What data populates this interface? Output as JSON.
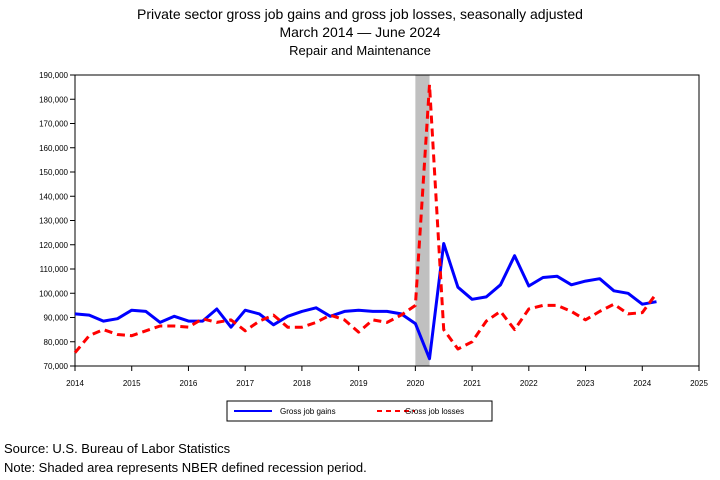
{
  "title": "Private sector gross job gains and gross job losses, seasonally adjusted",
  "date_range": {
    "start": "March 2014",
    "sep": "—",
    "end": "June 2024"
  },
  "subtitle": "Repair and Maintenance",
  "source": "Source: U.S. Bureau of Labor Statistics",
  "note": "Note: Shaded area represents NBER defined recession period.",
  "colors": {
    "gains": "#0000ff",
    "losses": "#ff0000",
    "recession": "#c0c0c0"
  },
  "chart_data": {
    "type": "line",
    "xlim": [
      2014,
      2025
    ],
    "ylim": [
      70000,
      190000
    ],
    "grid": false,
    "legend": "bottom",
    "x_ticks": [
      "2014",
      "2015",
      "2016",
      "2017",
      "2018",
      "2019",
      "2020",
      "2021",
      "2022",
      "2023",
      "2024",
      "2025"
    ],
    "y_ticks": [
      "70,000",
      "80,000",
      "90,000",
      "100,000",
      "110,000",
      "120,000",
      "130,000",
      "140,000",
      "150,000",
      "160,000",
      "170,000",
      "180,000",
      "190,000"
    ],
    "recession": {
      "start": 2020.0,
      "end": 2020.25
    },
    "x": [
      2014.0,
      2014.25,
      2014.5,
      2014.75,
      2015.0,
      2015.25,
      2015.5,
      2015.75,
      2016.0,
      2016.25,
      2016.5,
      2016.75,
      2017.0,
      2017.25,
      2017.5,
      2017.75,
      2018.0,
      2018.25,
      2018.5,
      2018.75,
      2019.0,
      2019.25,
      2019.5,
      2019.75,
      2020.0,
      2020.25,
      2020.5,
      2020.75,
      2021.0,
      2021.25,
      2021.5,
      2021.75,
      2022.0,
      2022.25,
      2022.5,
      2022.75,
      2023.0,
      2023.25,
      2023.5,
      2023.75,
      2024.0,
      2024.25
    ],
    "series": [
      {
        "name": "Gross job gains",
        "style": "solid",
        "values": [
          91500,
          91000,
          88500,
          89500,
          93000,
          92500,
          88000,
          90500,
          88500,
          88500,
          93500,
          86000,
          93000,
          91500,
          87000,
          90500,
          92500,
          94000,
          90500,
          92500,
          93000,
          92500,
          92500,
          91500,
          87500,
          73000,
          120500,
          102500,
          97500,
          98500,
          103500,
          115500,
          103000,
          106500,
          107000,
          103500,
          105000,
          106000,
          101000,
          100000,
          95500,
          96500
        ]
      },
      {
        "name": "Gross job losses",
        "style": "dashed",
        "values": [
          75500,
          82500,
          85000,
          83000,
          82500,
          84500,
          86500,
          86500,
          86000,
          89500,
          88000,
          89000,
          84500,
          88500,
          91000,
          86000,
          86000,
          88000,
          91000,
          89000,
          84000,
          89000,
          88000,
          91000,
          95000,
          186000,
          85000,
          77000,
          80000,
          88500,
          92500,
          85000,
          93500,
          95000,
          95000,
          92500,
          89000,
          92500,
          95500,
          91500,
          92000,
          100000
        ]
      }
    ]
  }
}
